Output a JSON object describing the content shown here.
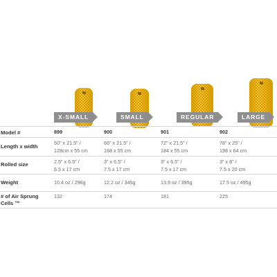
{
  "sizes": [
    {
      "tag": "X-SMALL"
    },
    {
      "tag": "SMALL"
    },
    {
      "tag": "REGULAR"
    },
    {
      "tag": "LARGE"
    }
  ],
  "table": {
    "rows": [
      {
        "label": "Model #",
        "cells": [
          "899",
          "900",
          "901",
          "902"
        ]
      },
      {
        "label": "Length x width",
        "cells": [
          [
            "50\" x 21.5\" /",
            "128cm x 55 cm"
          ],
          [
            "66\" x 21.5\" /",
            "168 x 55 cm"
          ],
          [
            "72\" x 21.5\" /",
            "184 x 55 cm"
          ],
          [
            "78\" x 25\" /",
            "198 x 64 cm"
          ]
        ]
      },
      {
        "label": "Rolled size",
        "cells": [
          [
            "2.5\" x 6.5\" /",
            "6.5 x 17 cm"
          ],
          [
            "3\" x 6.5\" /",
            "7.5 x 17 cm"
          ],
          [
            "3\" x 6.5\" /",
            "7.5 x 17 cm"
          ],
          [
            "3\" x 8\" /",
            "7.5 x 20 cm"
          ]
        ]
      },
      {
        "label": "Weight",
        "cells": [
          "10.4 oz / 296g",
          "12.2 oz / 345g",
          "13.9 oz / 395g",
          "17.5 oz / 495g"
        ]
      },
      {
        "label": "# of Air Sprung Cells ™",
        "cells": [
          "132",
          "174",
          "181",
          "225"
        ]
      }
    ]
  },
  "colors": {
    "pad": "#f5bd1e",
    "tag": "#8e8e8e",
    "rule": "#d7d7d7"
  }
}
